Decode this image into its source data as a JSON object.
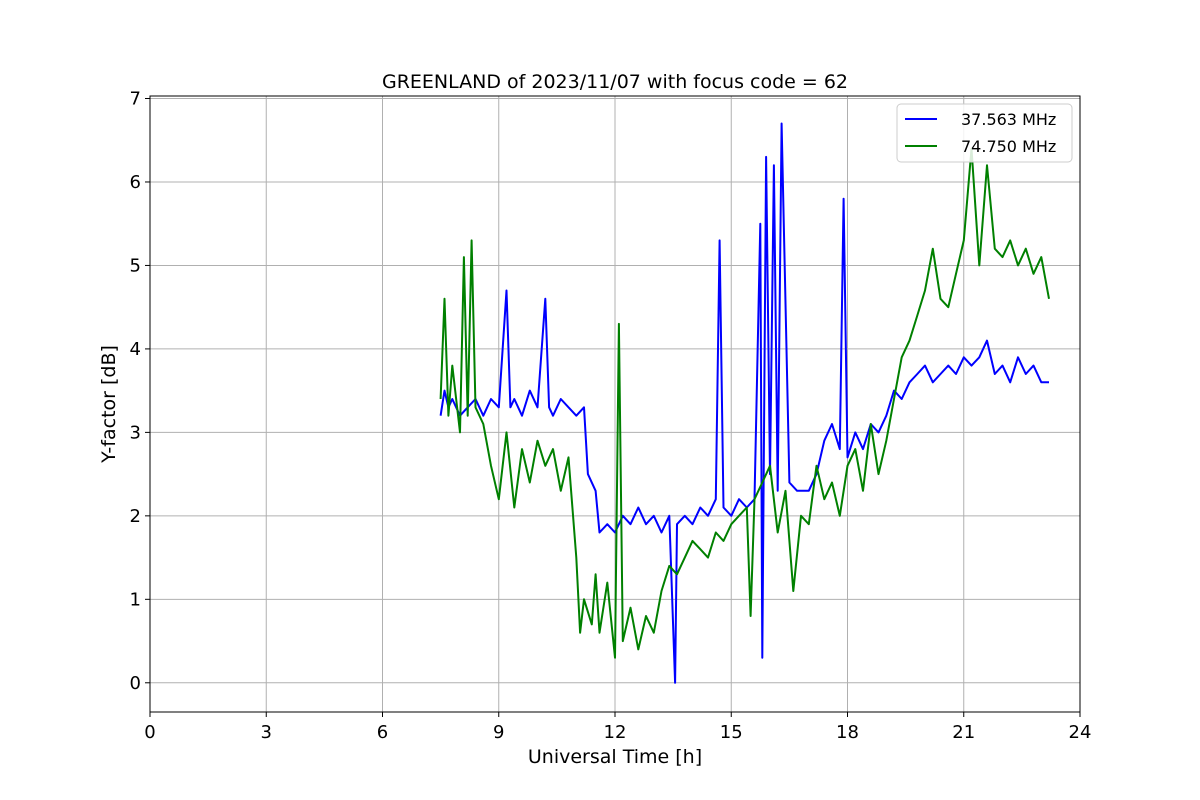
{
  "chart_data": {
    "type": "line",
    "title": "GREENLAND of 2023/11/07 with focus code = 62",
    "xlabel": "Universal Time [h]",
    "ylabel": "Y-factor [dB]",
    "xlim": [
      0,
      24
    ],
    "ylim": [
      -0.35,
      7.03
    ],
    "xticks": [
      0,
      3,
      6,
      9,
      12,
      15,
      18,
      21,
      24
    ],
    "xtick_labels": [
      "0",
      "3",
      "6",
      "9",
      "12",
      "15",
      "18",
      "21",
      "24"
    ],
    "yticks": [
      0,
      1,
      2,
      3,
      4,
      5,
      6,
      7
    ],
    "ytick_labels": [
      "0",
      "1",
      "2",
      "3",
      "4",
      "5",
      "6",
      "7"
    ],
    "grid": true,
    "legend_position": "top-right",
    "series": [
      {
        "name": "37.563 MHz",
        "color": "#0000ff",
        "x": [
          7.5,
          7.6,
          7.7,
          7.8,
          8.0,
          8.2,
          8.4,
          8.6,
          8.8,
          9.0,
          9.2,
          9.3,
          9.4,
          9.6,
          9.8,
          10.0,
          10.2,
          10.3,
          10.4,
          10.6,
          10.8,
          11.0,
          11.2,
          11.3,
          11.5,
          11.6,
          11.8,
          12.0,
          12.2,
          12.4,
          12.6,
          12.8,
          13.0,
          13.2,
          13.4,
          13.55,
          13.6,
          13.8,
          14.0,
          14.2,
          14.4,
          14.6,
          14.7,
          14.8,
          15.0,
          15.2,
          15.4,
          15.6,
          15.75,
          15.8,
          15.9,
          16.0,
          16.1,
          16.2,
          16.3,
          16.5,
          16.7,
          16.9,
          17.0,
          17.2,
          17.4,
          17.6,
          17.8,
          17.9,
          18.0,
          18.2,
          18.4,
          18.6,
          18.8,
          19.0,
          19.2,
          19.4,
          19.6,
          19.8,
          20.0,
          20.2,
          20.4,
          20.6,
          20.8,
          21.0,
          21.2,
          21.4,
          21.6,
          21.8,
          22.0,
          22.2,
          22.4,
          22.6,
          22.8,
          23.0,
          23.2
        ],
        "y": [
          3.2,
          3.5,
          3.3,
          3.4,
          3.2,
          3.3,
          3.4,
          3.2,
          3.4,
          3.3,
          4.7,
          3.3,
          3.4,
          3.2,
          3.5,
          3.3,
          4.6,
          3.3,
          3.2,
          3.4,
          3.3,
          3.2,
          3.3,
          2.5,
          2.3,
          1.8,
          1.9,
          1.8,
          2.0,
          1.9,
          2.1,
          1.9,
          2.0,
          1.8,
          2.0,
          0.0,
          1.9,
          2.0,
          1.9,
          2.1,
          2.0,
          2.2,
          5.3,
          2.1,
          2.0,
          2.2,
          2.1,
          2.2,
          5.5,
          0.3,
          6.3,
          2.5,
          6.2,
          2.3,
          6.7,
          2.4,
          2.3,
          2.3,
          2.3,
          2.5,
          2.9,
          3.1,
          2.8,
          5.8,
          2.7,
          3.0,
          2.8,
          3.1,
          3.0,
          3.2,
          3.5,
          3.4,
          3.6,
          3.7,
          3.8,
          3.6,
          3.7,
          3.8,
          3.7,
          3.9,
          3.8,
          3.9,
          4.1,
          3.7,
          3.8,
          3.6,
          3.9,
          3.7,
          3.8,
          3.6,
          3.6
        ]
      },
      {
        "name": "74.750 MHz",
        "color": "#008000",
        "x": [
          7.5,
          7.6,
          7.7,
          7.8,
          8.0,
          8.1,
          8.2,
          8.3,
          8.4,
          8.6,
          8.8,
          9.0,
          9.2,
          9.4,
          9.6,
          9.8,
          10.0,
          10.2,
          10.4,
          10.6,
          10.8,
          11.0,
          11.1,
          11.2,
          11.4,
          11.5,
          11.6,
          11.8,
          12.0,
          12.1,
          12.2,
          12.4,
          12.6,
          12.8,
          13.0,
          13.2,
          13.4,
          13.6,
          13.8,
          14.0,
          14.2,
          14.4,
          14.6,
          14.8,
          15.0,
          15.2,
          15.4,
          15.5,
          15.6,
          15.8,
          16.0,
          16.2,
          16.4,
          16.6,
          16.8,
          17.0,
          17.2,
          17.4,
          17.6,
          17.8,
          18.0,
          18.2,
          18.4,
          18.6,
          18.8,
          19.0,
          19.2,
          19.4,
          19.6,
          19.8,
          20.0,
          20.2,
          20.4,
          20.6,
          20.8,
          21.0,
          21.2,
          21.4,
          21.6,
          21.8,
          22.0,
          22.2,
          22.4,
          22.6,
          22.8,
          23.0,
          23.2
        ],
        "y": [
          3.4,
          4.6,
          3.2,
          3.8,
          3.0,
          5.1,
          3.2,
          5.3,
          3.3,
          3.1,
          2.6,
          2.2,
          3.0,
          2.1,
          2.8,
          2.4,
          2.9,
          2.6,
          2.8,
          2.3,
          2.7,
          1.5,
          0.6,
          1.0,
          0.7,
          1.3,
          0.6,
          1.2,
          0.3,
          4.3,
          0.5,
          0.9,
          0.4,
          0.8,
          0.6,
          1.1,
          1.4,
          1.3,
          1.5,
          1.7,
          1.6,
          1.5,
          1.8,
          1.7,
          1.9,
          2.0,
          2.1,
          0.8,
          2.2,
          2.4,
          2.6,
          1.8,
          2.3,
          1.1,
          2.0,
          1.9,
          2.6,
          2.2,
          2.4,
          2.0,
          2.6,
          2.8,
          2.3,
          3.1,
          2.5,
          2.9,
          3.4,
          3.9,
          4.1,
          4.4,
          4.7,
          5.2,
          4.6,
          4.5,
          4.9,
          5.3,
          6.4,
          5.0,
          6.2,
          5.2,
          5.1,
          5.3,
          5.0,
          5.2,
          4.9,
          5.1,
          4.6
        ]
      }
    ]
  }
}
